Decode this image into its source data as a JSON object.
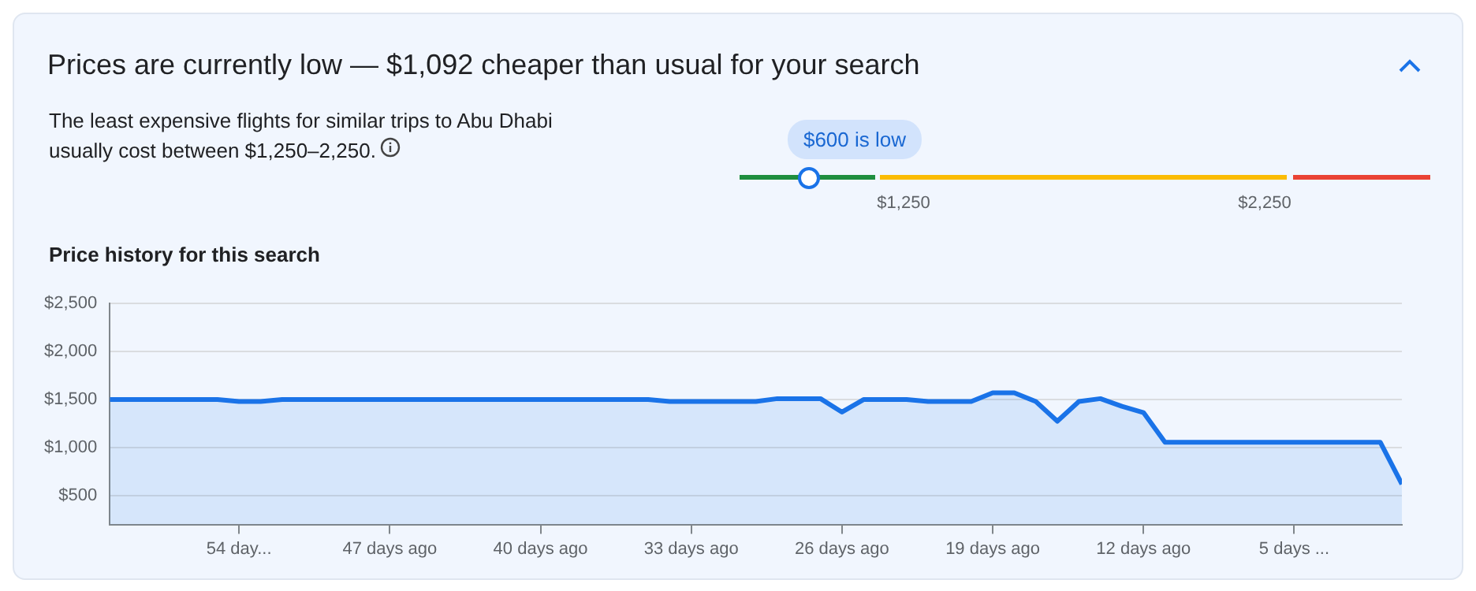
{
  "chart_data": {
    "type": "area",
    "title": "Prices are currently low — $1,092 cheaper than usual for your search",
    "subtitle": "The least expensive flights for similar trips to Abu Dhabi usually cost between $1,250–2,250.",
    "annotations": [
      "$600 is low",
      "$1,250",
      "$2,250",
      "Price history for this search"
    ],
    "x": [
      -60,
      -59,
      -58,
      -57,
      -56,
      -55,
      -54,
      -53,
      -52,
      -51,
      -50,
      -49,
      -48,
      -47,
      -46,
      -45,
      -44,
      -43,
      -42,
      -41,
      -40,
      -39,
      -38,
      -37,
      -36,
      -35,
      -34,
      -33,
      -32,
      -31,
      -30,
      -29,
      -28,
      -27,
      -26,
      -25,
      -24,
      -23,
      -22,
      -21,
      -20,
      -19,
      -18,
      -17,
      -16,
      -15,
      -14,
      -13,
      -12,
      -11,
      -10,
      -9,
      -8,
      -7,
      -6,
      -5,
      -4,
      -3,
      -2,
      -1,
      0
    ],
    "series": [
      {
        "color": "#1a73e8",
        "values": [
          1500,
          1500,
          1500,
          1500,
          1500,
          1500,
          1480,
          1480,
          1500,
          1500,
          1500,
          1500,
          1500,
          1500,
          1500,
          1500,
          1500,
          1500,
          1500,
          1500,
          1500,
          1500,
          1500,
          1500,
          1500,
          1500,
          1480,
          1480,
          1480,
          1480,
          1480,
          1510,
          1510,
          1510,
          1370,
          1500,
          1500,
          1500,
          1480,
          1480,
          1480,
          1570,
          1570,
          1480,
          1275,
          1480,
          1510,
          1430,
          1365,
          1055,
          1055,
          1055,
          1055,
          1055,
          1055,
          1055,
          1055,
          1055,
          1055,
          1055,
          620
        ]
      }
    ],
    "xlim": [
      -60,
      0
    ],
    "xticks": [
      {
        "value": -54,
        "label": "54 day..."
      },
      {
        "value": -47,
        "label": "47 days ago"
      },
      {
        "value": -40,
        "label": "40 days ago"
      },
      {
        "value": -33,
        "label": "33 days ago"
      },
      {
        "value": -26,
        "label": "26 days ago"
      },
      {
        "value": -19,
        "label": "19 days ago"
      },
      {
        "value": -12,
        "label": "12 days ago"
      },
      {
        "value": -5,
        "label": "5 days ..."
      }
    ],
    "ylim": [
      200,
      2500
    ],
    "yticks": [
      {
        "value": 500,
        "label": "$500"
      },
      {
        "value": 1000,
        "label": "$1,000"
      },
      {
        "value": 1500,
        "label": "$1,500"
      },
      {
        "value": 2000,
        "label": "$2,000"
      },
      {
        "value": 2500,
        "label": "$2,500"
      }
    ],
    "grid": "y",
    "marker": "none"
  }
}
